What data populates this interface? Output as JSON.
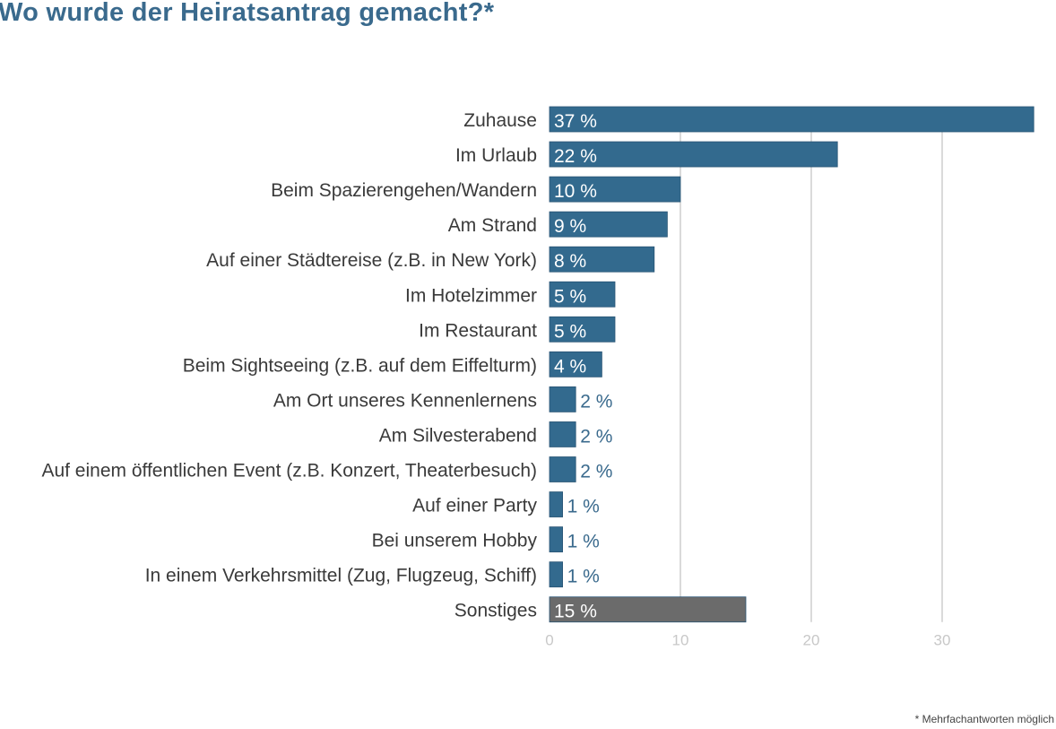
{
  "chart_data": {
    "type": "bar",
    "orientation": "horizontal",
    "title": "Wo wurde der Heiratsantrag gemacht?*",
    "categories": [
      "Zuhause",
      "Im Urlaub",
      "Beim Spazierengehen/Wandern",
      "Am Strand",
      "Auf einer Städtereise (z.B. in New York)",
      "Im Hotelzimmer",
      "Im Restaurant",
      "Beim Sightseeing (z.B. auf dem Eiffelturm)",
      "Am Ort unseres Kennenlernens",
      "Am Silvesterabend",
      "Auf einem öffentlichen Event (z.B. Konzert, Theaterbesuch)",
      "Auf einer Party",
      "Bei unserem Hobby",
      "In einem Verkehrsmittel (Zug, Flugzeug, Schiff)",
      "Sonstiges"
    ],
    "values": [
      37,
      22,
      10,
      9,
      8,
      5,
      5,
      4,
      2,
      2,
      2,
      1,
      1,
      1,
      15
    ],
    "data_labels": [
      "37 %",
      "22 %",
      "10 %",
      "9 %",
      "8 %",
      "5 %",
      "5 %",
      "4 %",
      "2 %",
      "2 %",
      "2 %",
      "1 %",
      "1 %",
      "1 %",
      "15 %"
    ],
    "bar_colors": [
      "#336a8e",
      "#336a8e",
      "#336a8e",
      "#336a8e",
      "#336a8e",
      "#336a8e",
      "#336a8e",
      "#336a8e",
      "#336a8e",
      "#336a8e",
      "#336a8e",
      "#336a8e",
      "#336a8e",
      "#336a8e",
      "#6b6b6b"
    ],
    "xticks": [
      "0",
      "10",
      "20",
      "30"
    ],
    "xlim": [
      0,
      37
    ],
    "grid": true,
    "xlabel": "",
    "ylabel": "",
    "footnote": "* Mehrfachantworten möglich"
  }
}
